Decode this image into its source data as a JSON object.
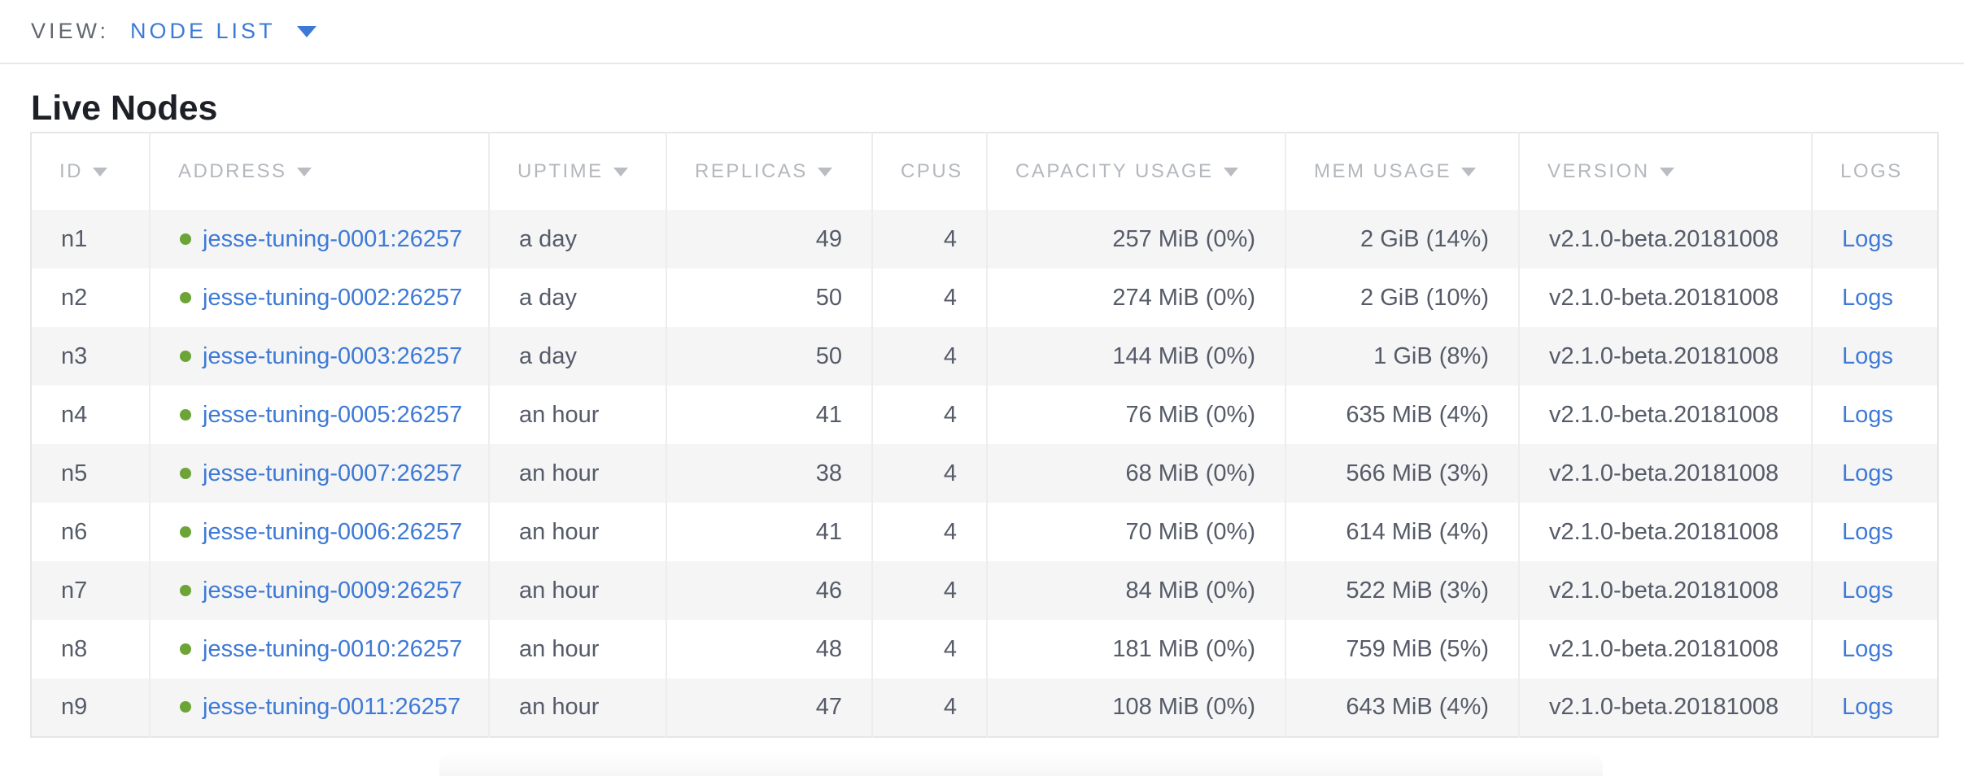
{
  "colors": {
    "accent_blue": "#3d7ad6",
    "link_blue": "#3e7ad6",
    "healthy_green": "#6ca437",
    "header_gray": "#b4b7bd",
    "cell_text": "#555b68",
    "alt_row_bg": "#f5f5f6"
  },
  "view_bar": {
    "label": "VIEW:",
    "selected": "NODE LIST"
  },
  "page": {
    "title": "Live Nodes"
  },
  "table": {
    "columns": [
      {
        "key": "id",
        "label": "ID",
        "sortable": true,
        "align": "left"
      },
      {
        "key": "address",
        "label": "ADDRESS",
        "sortable": true,
        "align": "left"
      },
      {
        "key": "uptime",
        "label": "UPTIME",
        "sortable": true,
        "align": "left"
      },
      {
        "key": "replicas",
        "label": "REPLICAS",
        "sortable": true,
        "align": "right"
      },
      {
        "key": "cpus",
        "label": "CPUS",
        "sortable": false,
        "align": "right"
      },
      {
        "key": "capacity",
        "label": "CAPACITY USAGE",
        "sortable": true,
        "align": "right"
      },
      {
        "key": "mem",
        "label": "MEM USAGE",
        "sortable": true,
        "align": "right"
      },
      {
        "key": "version",
        "label": "VERSION",
        "sortable": true,
        "align": "left"
      },
      {
        "key": "logs",
        "label": "LOGS",
        "sortable": false,
        "align": "left"
      }
    ],
    "rows": [
      {
        "id": "n1",
        "status": "healthy",
        "address": "jesse-tuning-0001:26257",
        "uptime": "a day",
        "replicas": "49",
        "cpus": "4",
        "capacity": "257 MiB (0%)",
        "mem": "2 GiB (14%)",
        "version": "v2.1.0-beta.20181008",
        "logs": "Logs"
      },
      {
        "id": "n2",
        "status": "healthy",
        "address": "jesse-tuning-0002:26257",
        "uptime": "a day",
        "replicas": "50",
        "cpus": "4",
        "capacity": "274 MiB (0%)",
        "mem": "2 GiB (10%)",
        "version": "v2.1.0-beta.20181008",
        "logs": "Logs"
      },
      {
        "id": "n3",
        "status": "healthy",
        "address": "jesse-tuning-0003:26257",
        "uptime": "a day",
        "replicas": "50",
        "cpus": "4",
        "capacity": "144 MiB (0%)",
        "mem": "1 GiB (8%)",
        "version": "v2.1.0-beta.20181008",
        "logs": "Logs"
      },
      {
        "id": "n4",
        "status": "healthy",
        "address": "jesse-tuning-0005:26257",
        "uptime": "an hour",
        "replicas": "41",
        "cpus": "4",
        "capacity": "76 MiB (0%)",
        "mem": "635 MiB (4%)",
        "version": "v2.1.0-beta.20181008",
        "logs": "Logs"
      },
      {
        "id": "n5",
        "status": "healthy",
        "address": "jesse-tuning-0007:26257",
        "uptime": "an hour",
        "replicas": "38",
        "cpus": "4",
        "capacity": "68 MiB (0%)",
        "mem": "566 MiB (3%)",
        "version": "v2.1.0-beta.20181008",
        "logs": "Logs"
      },
      {
        "id": "n6",
        "status": "healthy",
        "address": "jesse-tuning-0006:26257",
        "uptime": "an hour",
        "replicas": "41",
        "cpus": "4",
        "capacity": "70 MiB (0%)",
        "mem": "614 MiB (4%)",
        "version": "v2.1.0-beta.20181008",
        "logs": "Logs"
      },
      {
        "id": "n7",
        "status": "healthy",
        "address": "jesse-tuning-0009:26257",
        "uptime": "an hour",
        "replicas": "46",
        "cpus": "4",
        "capacity": "84 MiB (0%)",
        "mem": "522 MiB (3%)",
        "version": "v2.1.0-beta.20181008",
        "logs": "Logs"
      },
      {
        "id": "n8",
        "status": "healthy",
        "address": "jesse-tuning-0010:26257",
        "uptime": "an hour",
        "replicas": "48",
        "cpus": "4",
        "capacity": "181 MiB (0%)",
        "mem": "759 MiB (5%)",
        "version": "v2.1.0-beta.20181008",
        "logs": "Logs"
      },
      {
        "id": "n9",
        "status": "healthy",
        "address": "jesse-tuning-0011:26257",
        "uptime": "an hour",
        "replicas": "47",
        "cpus": "4",
        "capacity": "108 MiB (0%)",
        "mem": "643 MiB (4%)",
        "version": "v2.1.0-beta.20181008",
        "logs": "Logs"
      }
    ]
  }
}
